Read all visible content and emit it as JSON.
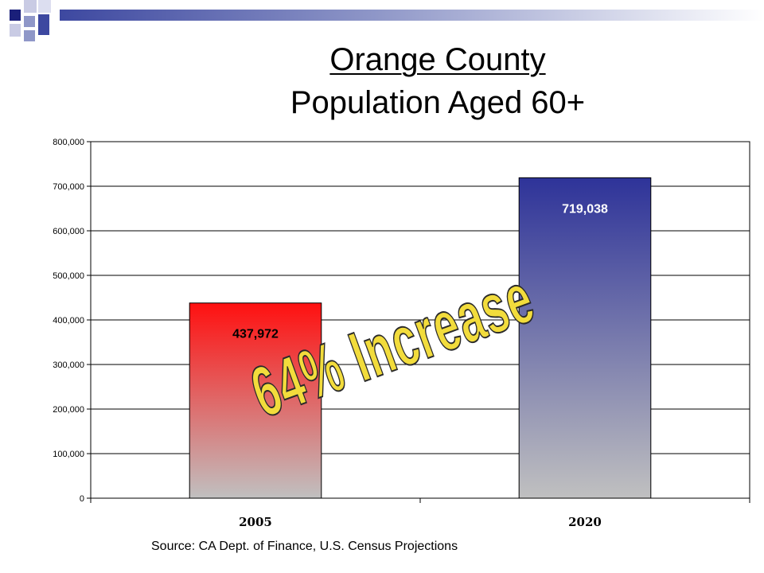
{
  "slide": {
    "title": "Orange County",
    "subtitle": "Population Aged 60+",
    "source": "Source: CA Dept. of Finance, U.S. Census Projections",
    "callout": "64% Increase",
    "colors": {
      "bar_2005_top": "#ff1010",
      "bar_2020_top": "#2e3399",
      "bar_bottom": "#c0c0c0",
      "callout_fill": "#f2dc3c",
      "accent": "#3d48a0"
    }
  },
  "chart_data": {
    "type": "bar",
    "categories": [
      "2005",
      "2020"
    ],
    "values": [
      437972,
      719038
    ],
    "data_labels": [
      "437,972",
      "719,038"
    ],
    "ylim": [
      0,
      800000
    ],
    "yticks": [
      0,
      100000,
      200000,
      300000,
      400000,
      500000,
      600000,
      700000,
      800000
    ],
    "ytick_labels": [
      "0",
      "100,000",
      "200,000",
      "300,000",
      "400,000",
      "500,000",
      "600,000",
      "700,000",
      "800,000"
    ],
    "title": "",
    "xlabel": "",
    "ylabel": "",
    "grid": true,
    "legend": "none"
  }
}
